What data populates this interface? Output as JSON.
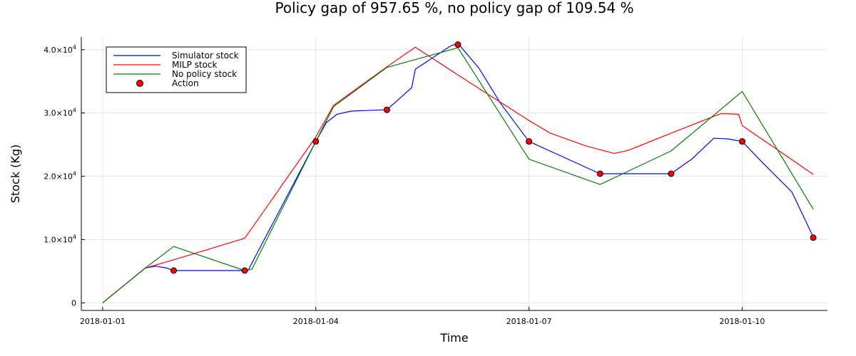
{
  "chart_data": {
    "type": "line",
    "title": "Policy gap of 957.65 %, no policy gap of 109.54 %",
    "xlabel": "Time",
    "ylabel": "Stock (Kg)",
    "x_ticks": [
      "2018-01-01",
      "2018-01-04",
      "2018-01-07",
      "2018-01-10"
    ],
    "y_ticks": [
      {
        "value": 0,
        "base": "0",
        "exp": ""
      },
      {
        "value": 10000,
        "base": "1.0×10",
        "exp": "4"
      },
      {
        "value": 20000,
        "base": "2.0×10",
        "exp": "4"
      },
      {
        "value": 30000,
        "base": "3.0×10",
        "exp": "4"
      },
      {
        "value": 40000,
        "base": "4.0×10",
        "exp": "4"
      }
    ],
    "xlim": [
      -0.3,
      10.2
    ],
    "ylim": [
      -1200,
      42000
    ],
    "grid": true,
    "legend_position": "top-left",
    "series": [
      {
        "name": "Simulator stock",
        "kind": "line",
        "color": "#0000ff",
        "points": [
          [
            0,
            0
          ],
          [
            0.6,
            5500
          ],
          [
            0.75,
            5800
          ],
          [
            0.9,
            5500
          ],
          [
            1.0,
            5100
          ],
          [
            2.0,
            5100
          ],
          [
            2.05,
            5200
          ],
          [
            3.0,
            25500
          ],
          [
            3.15,
            28500
          ],
          [
            3.3,
            29800
          ],
          [
            3.5,
            30300
          ],
          [
            4.0,
            30500
          ],
          [
            4.35,
            34000
          ],
          [
            4.4,
            36900
          ],
          [
            4.9,
            40600
          ],
          [
            5.0,
            41000
          ],
          [
            5.3,
            37000
          ],
          [
            5.6,
            31500
          ],
          [
            6.0,
            25500
          ],
          [
            7.0,
            20400
          ],
          [
            8.0,
            20400
          ],
          [
            8.3,
            22800
          ],
          [
            8.6,
            26000
          ],
          [
            8.8,
            25900
          ],
          [
            9.0,
            25500
          ],
          [
            9.3,
            22000
          ],
          [
            9.7,
            17500
          ],
          [
            10.0,
            10400
          ]
        ]
      },
      {
        "name": "MILP stock",
        "kind": "line",
        "color": "#ff0000",
        "points": [
          [
            0,
            0
          ],
          [
            0.6,
            5500
          ],
          [
            1.0,
            6800
          ],
          [
            2.0,
            10200
          ],
          [
            3.0,
            26200
          ],
          [
            3.25,
            31200
          ],
          [
            4.0,
            37300
          ],
          [
            4.4,
            40400
          ],
          [
            5.0,
            36000
          ],
          [
            6.0,
            28800
          ],
          [
            6.3,
            26800
          ],
          [
            6.8,
            24800
          ],
          [
            7.2,
            23600
          ],
          [
            7.4,
            24100
          ],
          [
            8.0,
            26800
          ],
          [
            8.7,
            29900
          ],
          [
            8.95,
            29800
          ],
          [
            9.0,
            28000
          ],
          [
            10.0,
            20300
          ]
        ]
      },
      {
        "name": "No policy stock",
        "kind": "line",
        "color": "#008000",
        "points": [
          [
            0,
            0
          ],
          [
            0.6,
            5500
          ],
          [
            1.0,
            8900
          ],
          [
            2.0,
            5100
          ],
          [
            2.1,
            5300
          ],
          [
            3.0,
            25500
          ],
          [
            3.25,
            31000
          ],
          [
            4.0,
            37200
          ],
          [
            5.0,
            40300
          ],
          [
            6.0,
            22700
          ],
          [
            7.0,
            18700
          ],
          [
            8.0,
            24000
          ],
          [
            9.0,
            33400
          ],
          [
            10.0,
            14800
          ]
        ]
      },
      {
        "name": "Action",
        "kind": "scatter",
        "color": "#ff0000",
        "points": [
          [
            1.0,
            5100
          ],
          [
            2.0,
            5100
          ],
          [
            3.0,
            25500
          ],
          [
            4.0,
            30500
          ],
          [
            5.0,
            40800
          ],
          [
            6.0,
            25500
          ],
          [
            7.0,
            20400
          ],
          [
            8.0,
            20400
          ],
          [
            9.0,
            25500
          ],
          [
            10.0,
            10300
          ]
        ]
      }
    ]
  }
}
